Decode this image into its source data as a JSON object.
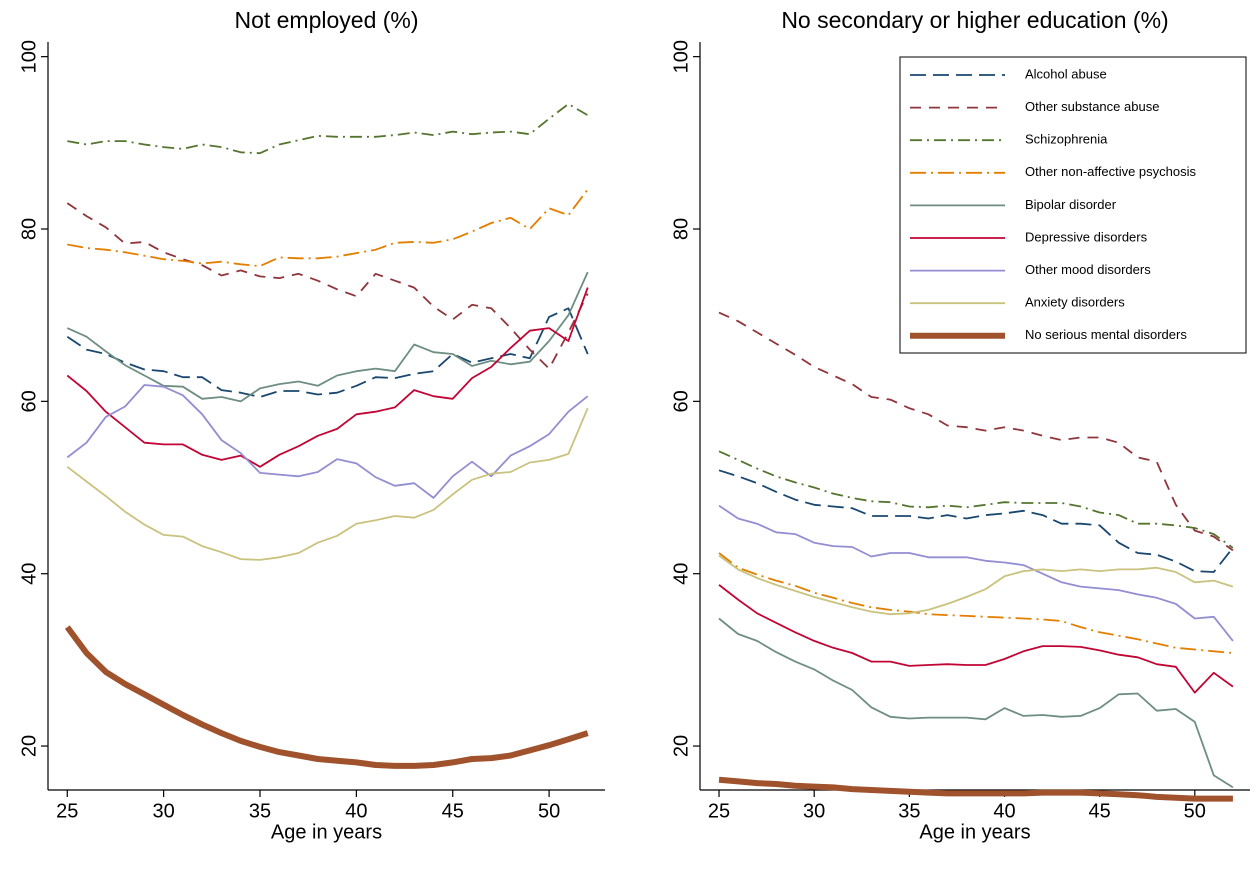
{
  "chart_data": [
    {
      "type": "line",
      "title": "Not employed (%)",
      "xlabel": "Age in years",
      "x": [
        25,
        26,
        27,
        28,
        29,
        30,
        31,
        32,
        33,
        34,
        35,
        36,
        37,
        38,
        39,
        40,
        41,
        42,
        43,
        44,
        45,
        46,
        47,
        48,
        49,
        50,
        51,
        52
      ],
      "xlim": [
        24,
        52.9
      ],
      "xticks": [
        25,
        30,
        35,
        40,
        45,
        50
      ],
      "ylim": [
        14.9,
        101.7
      ],
      "yticks": [
        20,
        40,
        60,
        80,
        100
      ],
      "series": [
        {
          "color": "#1a476f",
          "style": "longdash",
          "values": [
            67.5,
            66,
            65.5,
            64.5,
            63.7,
            63.5,
            62.8,
            62.8,
            61.3,
            61,
            60.5,
            61.2,
            61.2,
            60.8,
            61,
            61.8,
            62.8,
            62.7,
            63.2,
            63.5,
            65.5,
            64.5,
            65,
            65.5,
            65,
            69.8,
            70.8,
            65.5
          ]
        },
        {
          "color": "#90353b",
          "style": "dash",
          "values": [
            83,
            81.5,
            80.2,
            78.3,
            78.5,
            77.3,
            76.5,
            75.8,
            74.6,
            75.2,
            74.5,
            74.3,
            74.8,
            74,
            73,
            72.2,
            74.8,
            74,
            73.2,
            71,
            69.5,
            71.2,
            70.8,
            68.5,
            66,
            63.8,
            68,
            72.5
          ]
        },
        {
          "color": "#55752f",
          "style": "dashdot",
          "values": [
            90.2,
            89.8,
            90.2,
            90.2,
            89.8,
            89.5,
            89.3,
            89.8,
            89.5,
            88.9,
            88.8,
            89.8,
            90.3,
            90.8,
            90.7,
            90.7,
            90.7,
            90.9,
            91.2,
            90.9,
            91.3,
            91,
            91.2,
            91.3,
            91,
            92.8,
            94.5,
            93.2
          ]
        },
        {
          "color": "#e37e00",
          "style": "longdashdot",
          "values": [
            78.2,
            77.8,
            77.6,
            77.3,
            76.9,
            76.5,
            76.3,
            76,
            76.2,
            75.9,
            75.7,
            76.7,
            76.6,
            76.6,
            76.8,
            77.2,
            77.6,
            78.4,
            78.5,
            78.4,
            78.8,
            79.7,
            80.7,
            81.3,
            80,
            82.4,
            81.6,
            84.6
          ]
        },
        {
          "color": "#6e8e84",
          "style": "solid",
          "values": [
            68.5,
            67.5,
            65.8,
            64.2,
            63,
            61.8,
            61.7,
            60.3,
            60.5,
            60,
            61.5,
            62,
            62.3,
            61.8,
            63,
            63.5,
            63.8,
            63.5,
            66.6,
            65.7,
            65.5,
            64.1,
            64.7,
            64.3,
            64.6,
            67,
            70,
            75
          ]
        },
        {
          "color": "#c10534",
          "style": "solid",
          "values": [
            63,
            61.2,
            58.8,
            57,
            55.2,
            55,
            55,
            53.8,
            53.2,
            53.7,
            52.4,
            53.8,
            54.8,
            56,
            56.8,
            58.5,
            58.8,
            59.3,
            61.3,
            60.6,
            60.3,
            62.7,
            64,
            66.2,
            68.2,
            68.5,
            67,
            73.2
          ]
        },
        {
          "color": "#938dd2",
          "style": "solid",
          "values": [
            53.5,
            55.2,
            58.2,
            59.4,
            61.9,
            61.7,
            60.7,
            58.5,
            55.5,
            54,
            51.7,
            51.5,
            51.3,
            51.8,
            53.3,
            52.8,
            51.2,
            50.2,
            50.5,
            48.8,
            51.3,
            53,
            51.3,
            53.7,
            54.8,
            56.2,
            58.8,
            60.6
          ]
        },
        {
          "color": "#cac27e",
          "style": "solid",
          "values": [
            52.4,
            50.7,
            49,
            47.2,
            45.7,
            44.5,
            44.3,
            43.2,
            42.5,
            41.7,
            41.6,
            41.9,
            42.4,
            43.6,
            44.4,
            45.8,
            46.2,
            46.7,
            46.5,
            47.4,
            49.2,
            50.9,
            51.6,
            51.8,
            52.9,
            53.2,
            53.9,
            59.2
          ]
        },
        {
          "color": "#a0522d",
          "style": "thick",
          "values": [
            33.8,
            30.8,
            28.6,
            27.2,
            26,
            24.8,
            23.6,
            22.5,
            21.5,
            20.6,
            19.9,
            19.3,
            18.9,
            18.5,
            18.3,
            18.1,
            17.8,
            17.7,
            17.7,
            17.8,
            18.1,
            18.5,
            18.6,
            18.9,
            19.5,
            20.1,
            20.8,
            21.5
          ]
        }
      ]
    },
    {
      "type": "line",
      "title": "No secondary or higher education (%)",
      "xlabel": "Age in years",
      "x": [
        25,
        26,
        27,
        28,
        29,
        30,
        31,
        32,
        33,
        34,
        35,
        36,
        37,
        38,
        39,
        40,
        41,
        42,
        43,
        44,
        45,
        46,
        47,
        48,
        49,
        50,
        51,
        52
      ],
      "xlim": [
        24,
        52.9
      ],
      "xticks": [
        25,
        30,
        35,
        40,
        45,
        50
      ],
      "ylim": [
        14.9,
        101.7
      ],
      "yticks": [
        20,
        40,
        60,
        80,
        100
      ],
      "legend": "top-right",
      "series": [
        {
          "name": "Alcohol abuse",
          "color": "#1a476f",
          "style": "longdash",
          "values": [
            52,
            51.3,
            50.5,
            49.5,
            48.6,
            48,
            47.8,
            47.6,
            46.7,
            46.7,
            46.7,
            46.4,
            46.8,
            46.4,
            46.8,
            47,
            47.3,
            46.8,
            45.8,
            45.8,
            45.6,
            43.6,
            42.4,
            42.2,
            41.4,
            40.3,
            40.2,
            43
          ]
        },
        {
          "name": "Other substance abuse",
          "color": "#90353b",
          "style": "dash",
          "values": [
            70.3,
            69.3,
            68,
            66.7,
            65.4,
            64,
            63,
            62,
            60.5,
            60.2,
            59.2,
            58.5,
            57.2,
            57,
            56.6,
            57,
            56.6,
            56,
            55.5,
            55.8,
            55.8,
            55.2,
            53.5,
            53,
            48,
            45,
            44.3,
            42.7
          ]
        },
        {
          "name": "Schizophrenia",
          "color": "#55752f",
          "style": "dashdot",
          "values": [
            54.2,
            53.2,
            52.2,
            51.3,
            50.6,
            50,
            49.3,
            48.8,
            48.4,
            48.3,
            47.8,
            47.7,
            47.9,
            47.7,
            48,
            48.3,
            48.2,
            48.2,
            48.2,
            47.8,
            47.1,
            46.8,
            45.8,
            45.8,
            45.6,
            45.3,
            44.6,
            43
          ]
        },
        {
          "name": "Other non-affective psychosis",
          "color": "#e37e00",
          "style": "longdashdot",
          "values": [
            42.4,
            40.7,
            39.9,
            39.2,
            38.6,
            37.8,
            37.2,
            36.6,
            36.1,
            35.8,
            35.6,
            35.3,
            35.2,
            35.1,
            35,
            34.9,
            34.8,
            34.7,
            34.5,
            33.8,
            33.2,
            32.8,
            32.4,
            31.9,
            31.4,
            31.2,
            31,
            30.8
          ]
        },
        {
          "name": "Bipolar disorder",
          "color": "#6e8e84",
          "style": "solid",
          "values": [
            34.8,
            33,
            32.2,
            30.9,
            29.8,
            28.9,
            27.6,
            26.5,
            24.5,
            23.4,
            23.2,
            23.3,
            23.3,
            23.3,
            23.1,
            24.4,
            23.5,
            23.6,
            23.4,
            23.5,
            24.4,
            26,
            26.1,
            24.1,
            24.3,
            22.8,
            16.6,
            15.2
          ]
        },
        {
          "name": "Depressive disorders",
          "color": "#c10534",
          "style": "solid",
          "values": [
            38.7,
            37,
            35.4,
            34.3,
            33.2,
            32.2,
            31.4,
            30.8,
            29.8,
            29.8,
            29.3,
            29.4,
            29.5,
            29.4,
            29.4,
            30.1,
            31,
            31.6,
            31.6,
            31.5,
            31.1,
            30.6,
            30.3,
            29.5,
            29.2,
            26.2,
            28.5,
            26.9
          ]
        },
        {
          "name": "Other mood disorders",
          "color": "#938dd2",
          "style": "solid",
          "values": [
            47.9,
            46.4,
            45.8,
            44.8,
            44.6,
            43.6,
            43.2,
            43.1,
            42,
            42.4,
            42.4,
            41.9,
            41.9,
            41.9,
            41.5,
            41.3,
            41,
            40,
            39,
            38.5,
            38.3,
            38.1,
            37.6,
            37.2,
            36.5,
            34.8,
            35,
            32.2
          ]
        },
        {
          "name": "Anxiety disorders",
          "color": "#cac27e",
          "style": "solid",
          "values": [
            42.1,
            40.5,
            39.5,
            38.7,
            38,
            37.3,
            36.7,
            36.1,
            35.6,
            35.3,
            35.4,
            35.8,
            36.5,
            37.3,
            38.2,
            39.7,
            40.3,
            40.5,
            40.3,
            40.5,
            40.3,
            40.5,
            40.5,
            40.7,
            40.2,
            39,
            39.2,
            38.5
          ]
        },
        {
          "name": "No serious mental disorders",
          "color": "#a0522d",
          "style": "thick",
          "values": [
            16.1,
            15.9,
            15.7,
            15.6,
            15.4,
            15.3,
            15.2,
            15,
            14.9,
            14.8,
            14.7,
            14.6,
            14.5,
            14.5,
            14.5,
            14.5,
            14.5,
            14.6,
            14.6,
            14.6,
            14.5,
            14.4,
            14.3,
            14.1,
            14,
            13.9,
            13.9,
            13.9
          ]
        }
      ]
    }
  ]
}
